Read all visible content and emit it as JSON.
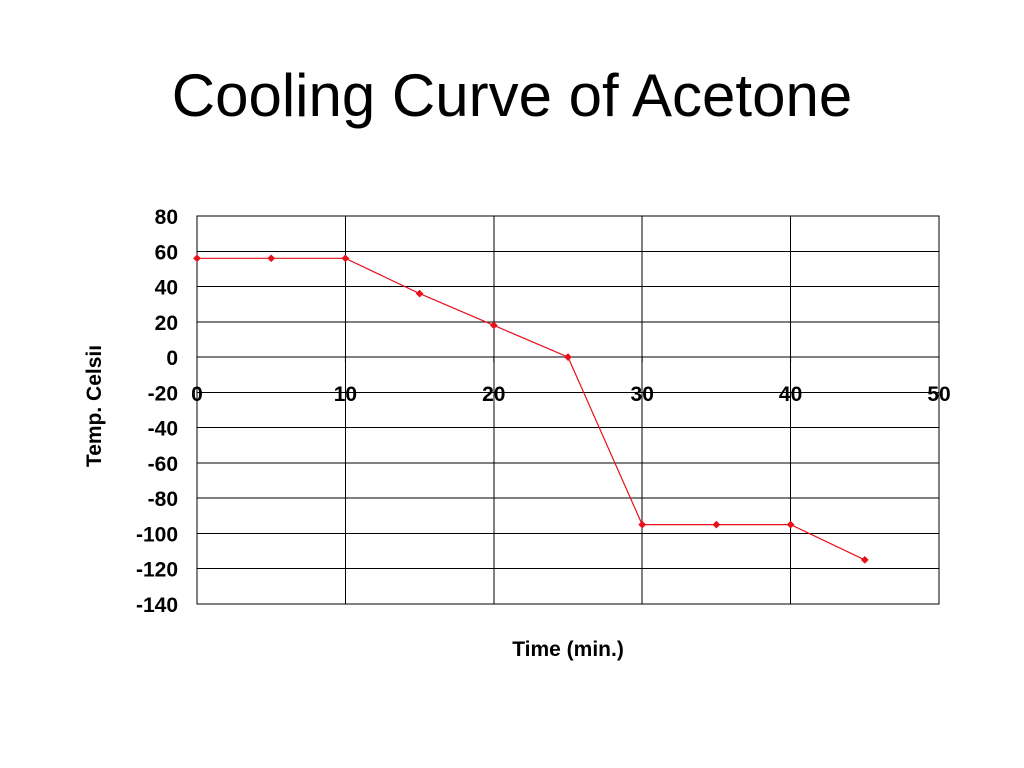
{
  "title": "Cooling Curve of Acetone",
  "chart_data": {
    "type": "scatter",
    "title": "",
    "xlabel": "Time (min.)",
    "ylabel": "Temp. Celsius",
    "ylabel_visible": "Temp. Celsiı",
    "xlim": [
      0,
      50
    ],
    "ylim": [
      -140,
      80
    ],
    "x_ticks": [
      0,
      10,
      20,
      30,
      40,
      50
    ],
    "y_ticks": [
      80,
      60,
      40,
      20,
      0,
      -20,
      -40,
      -60,
      -80,
      -100,
      -120,
      -140
    ],
    "grid": true,
    "legend": "none",
    "series": [
      {
        "x": [
          0,
          5,
          10,
          15,
          20,
          25,
          30,
          35,
          40,
          45
        ],
        "y": [
          56,
          56,
          56,
          36,
          18,
          0,
          -95,
          -95,
          -95,
          -115
        ],
        "color": "#e8101a",
        "marker": "diamond",
        "line": true
      }
    ]
  }
}
